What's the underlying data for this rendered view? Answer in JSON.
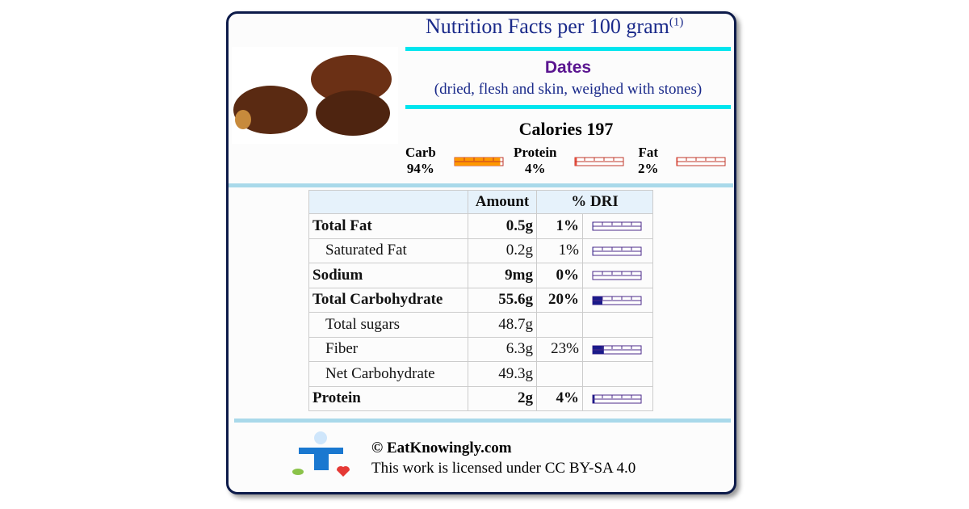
{
  "header": {
    "title": "Nutrition Facts per 100 gram",
    "title_note": "(1)",
    "food": "Dates",
    "description": "(dried, flesh and skin, weighed with stones)"
  },
  "calories": {
    "label": "Calories",
    "value": 197
  },
  "macros": [
    {
      "name": "Carb",
      "value": 94,
      "label": "94%"
    },
    {
      "name": "Protein",
      "value": 4,
      "label": "4%"
    },
    {
      "name": "Fat",
      "value": 2,
      "label": "2%"
    }
  ],
  "table": {
    "headers": [
      "Amount",
      "% DRI"
    ],
    "rows": [
      {
        "name": "Total Fat",
        "amount": "0.5g",
        "dri": {
          "value": 1,
          "label": "1%"
        },
        "bold": true
      },
      {
        "name": "Saturated Fat",
        "amount": "0.2g",
        "dri": {
          "value": 1,
          "label": "1%"
        },
        "bold": false
      },
      {
        "name": "Sodium",
        "amount": "9mg",
        "dri": {
          "value": 0,
          "label": "0%"
        },
        "bold": true
      },
      {
        "name": "Total Carbohydrate",
        "amount": "55.6g",
        "dri": {
          "value": 20,
          "label": "20%"
        },
        "bold": true
      },
      {
        "name": "Total sugars",
        "amount": "48.7g",
        "dri": null,
        "bold": false
      },
      {
        "name": "Fiber",
        "amount": "6.3g",
        "dri": {
          "value": 23,
          "label": "23%"
        },
        "bold": false
      },
      {
        "name": "Net Carbohydrate",
        "amount": "49.3g",
        "dri": null,
        "bold": false
      },
      {
        "name": "Protein",
        "amount": "2g",
        "dri": {
          "value": 4,
          "label": "4%"
        },
        "bold": true
      }
    ]
  },
  "footer": {
    "copyright": "© EatKnowingly.com",
    "license": "This work is licensed under CC BY-SA 4.0"
  }
}
